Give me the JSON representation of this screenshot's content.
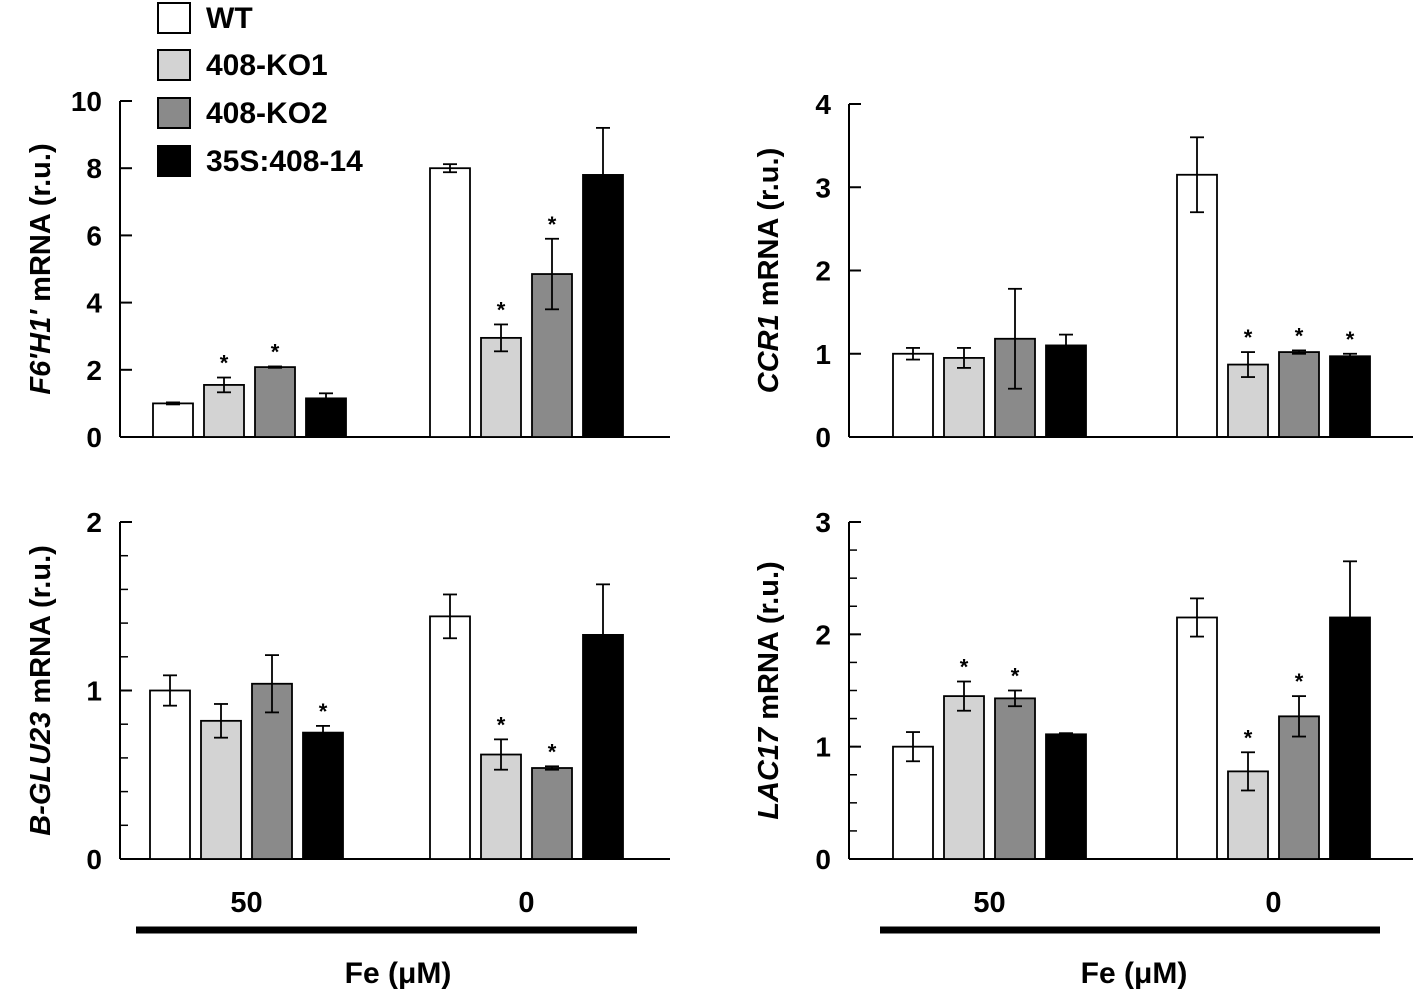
{
  "figure": {
    "legend": [
      {
        "label": "WT",
        "color": "#ffffff"
      },
      {
        "label": "408-KO1",
        "color": "#d3d3d3"
      },
      {
        "label": "408-KO2",
        "color": "#8a8a8a"
      },
      {
        "label": "35S:408-14",
        "color": "#000000"
      }
    ],
    "x_axis_title": "Fe (μM)"
  },
  "chart_data": [
    {
      "type": "bar",
      "panel": "top-left",
      "ylabel_italic": "F6'H1'",
      "ylabel_rest": " mRNA (r.u.)",
      "xlabel": "Fe (μM)",
      "categories": [
        "50",
        "0"
      ],
      "ylim": [
        0,
        10
      ],
      "yticks": [
        "0",
        "2",
        "4",
        "6",
        "8",
        "10"
      ],
      "series": [
        {
          "name": "WT",
          "values": [
            1.0,
            8.0
          ],
          "errors": [
            0.03,
            0.12
          ],
          "significant": [
            false,
            false
          ]
        },
        {
          "name": "408-KO1",
          "values": [
            1.55,
            2.95
          ],
          "errors": [
            0.22,
            0.4
          ],
          "significant": [
            true,
            true
          ]
        },
        {
          "name": "408-KO2",
          "values": [
            2.08,
            4.85
          ],
          "errors": [
            0.02,
            1.05
          ],
          "significant": [
            true,
            true
          ]
        },
        {
          "name": "35S:408-14",
          "values": [
            1.15,
            7.8
          ],
          "errors": [
            0.15,
            1.4
          ],
          "significant": [
            false,
            false
          ]
        }
      ]
    },
    {
      "type": "bar",
      "panel": "top-right",
      "ylabel_italic": "CCR1",
      "ylabel_rest": " mRNA (r.u.)",
      "xlabel": "Fe (μM)",
      "categories": [
        "50",
        "0"
      ],
      "ylim": [
        0,
        4
      ],
      "yticks": [
        "0",
        "1",
        "2",
        "3",
        "4"
      ],
      "series": [
        {
          "name": "WT",
          "values": [
            1.0,
            3.15
          ],
          "errors": [
            0.07,
            0.45
          ],
          "significant": [
            false,
            false
          ]
        },
        {
          "name": "408-KO1",
          "values": [
            0.95,
            0.87
          ],
          "errors": [
            0.12,
            0.15
          ],
          "significant": [
            false,
            true
          ]
        },
        {
          "name": "408-KO2",
          "values": [
            1.18,
            1.02
          ],
          "errors": [
            0.6,
            0.02
          ],
          "significant": [
            false,
            true
          ]
        },
        {
          "name": "35S:408-14",
          "values": [
            1.1,
            0.97
          ],
          "errors": [
            0.13,
            0.03
          ],
          "significant": [
            false,
            true
          ]
        }
      ]
    },
    {
      "type": "bar",
      "panel": "bottom-left",
      "ylabel_italic": "B-GLU23",
      "ylabel_rest": " mRNA (r.u.)",
      "xlabel": "Fe (μM)",
      "categories": [
        "50",
        "0"
      ],
      "ylim": [
        0,
        2
      ],
      "yticks": [
        "0",
        "1",
        "2"
      ],
      "minor_step": 0.2,
      "series": [
        {
          "name": "WT",
          "values": [
            1.0,
            1.44
          ],
          "errors": [
            0.09,
            0.13
          ],
          "significant": [
            false,
            false
          ]
        },
        {
          "name": "408-KO1",
          "values": [
            0.82,
            0.62
          ],
          "errors": [
            0.1,
            0.09
          ],
          "significant": [
            false,
            true
          ]
        },
        {
          "name": "408-KO2",
          "values": [
            1.04,
            0.54
          ],
          "errors": [
            0.17,
            0.01
          ],
          "significant": [
            false,
            true
          ]
        },
        {
          "name": "35S:408-14",
          "values": [
            0.75,
            1.33
          ],
          "errors": [
            0.04,
            0.3
          ],
          "significant": [
            true,
            false
          ]
        }
      ]
    },
    {
      "type": "bar",
      "panel": "bottom-right",
      "ylabel_italic": "LAC17",
      "ylabel_rest": " mRNA (r.u.)",
      "xlabel": "Fe (μM)",
      "categories": [
        "50",
        "0"
      ],
      "ylim": [
        0,
        3
      ],
      "yticks": [
        "0",
        "1",
        "2",
        "3"
      ],
      "minor_step": 0.25,
      "series": [
        {
          "name": "WT",
          "values": [
            1.0,
            2.15
          ],
          "errors": [
            0.13,
            0.17
          ],
          "significant": [
            false,
            false
          ]
        },
        {
          "name": "408-KO1",
          "values": [
            1.45,
            0.78
          ],
          "errors": [
            0.13,
            0.17
          ],
          "significant": [
            true,
            true
          ]
        },
        {
          "name": "408-KO2",
          "values": [
            1.43,
            1.27
          ],
          "errors": [
            0.07,
            0.18
          ],
          "significant": [
            true,
            true
          ]
        },
        {
          "name": "35S:408-14",
          "values": [
            1.11,
            2.15
          ],
          "errors": [
            0.01,
            0.5
          ],
          "significant": [
            false,
            false
          ]
        }
      ]
    }
  ]
}
